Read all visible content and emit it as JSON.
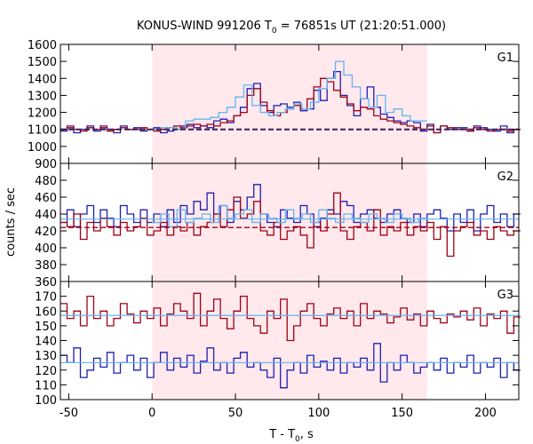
{
  "chart_data": {
    "type": "line",
    "title": "KONUS-WIND 991206 T",
    "title_sub": "0",
    "title_rest": " = 76851s UT (21:20:51.000)",
    "xlabel": "T - T",
    "xlabel_sub": "0",
    "xlabel_rest": ", s",
    "ylabel": "counts / sec",
    "xlim": [
      -55,
      220
    ],
    "x_ticks": [
      -50,
      0,
      50,
      100,
      150,
      200
    ],
    "shaded_interval": [
      0,
      165
    ],
    "colors": {
      "shade": "#ffe9ec",
      "red": "#a00014",
      "blue": "#1e1eb4",
      "cyan": "#64b4f0",
      "navy": "#3c1e5a"
    },
    "panels": [
      {
        "name": "G1",
        "ylim": [
          900,
          1600
        ],
        "y_ticks": [
          900,
          1000,
          1100,
          1200,
          1300,
          1400,
          1500,
          1600
        ],
        "background_level": 1100,
        "series": [
          {
            "color": "blue",
            "x_start": -55,
            "dx": 4,
            "values": [
              1090,
              1110,
              1080,
              1100,
              1120,
              1090,
              1110,
              1100,
              1080,
              1120,
              1100,
              1110,
              1090,
              1100,
              1110,
              1080,
              1090,
              1100,
              1120,
              1130,
              1110,
              1120,
              1110,
              1150,
              1160,
              1140,
              1180,
              1230,
              1340,
              1370,
              1240,
              1200,
              1240,
              1250,
              1230,
              1260,
              1210,
              1220,
              1330,
              1270,
              1400,
              1440,
              1300,
              1240,
              1180,
              1280,
              1350,
              1230,
              1190,
              1170,
              1150,
              1140,
              1150,
              1140,
              1090,
              1130,
              1080,
              1120,
              1100,
              1110,
              1110,
              1090,
              1120,
              1110,
              1100,
              1090,
              1120,
              1080,
              1100
            ]
          },
          {
            "color": "red",
            "x_start": -55,
            "dx": 4,
            "values": [
              1100,
              1120,
              1100,
              1090,
              1110,
              1100,
              1120,
              1090,
              1100,
              1110,
              1100,
              1100,
              1110,
              1100,
              1090,
              1100,
              1110,
              1120,
              1110,
              1120,
              1130,
              1120,
              1130,
              1120,
              1140,
              1150,
              1180,
              1200,
              1300,
              1340,
              1260,
              1210,
              1180,
              1200,
              1220,
              1240,
              1220,
              1280,
              1350,
              1400,
              1380,
              1330,
              1290,
              1250,
              1210,
              1230,
              1220,
              1180,
              1160,
              1150,
              1140,
              1130,
              1120,
              1110,
              1100,
              1120,
              1080,
              1120,
              1110,
              1100,
              1100,
              1090,
              1110,
              1100,
              1090,
              1100,
              1100,
              1090,
              1100
            ]
          },
          {
            "color": "cyan",
            "x_start": 0,
            "dx": 5,
            "values": [
              1100,
              1110,
              1110,
              1100,
              1150,
              1160,
              1160,
              1170,
              1200,
              1230,
              1290,
              1360,
              1240,
              1200,
              1180,
              1200,
              1220,
              1250,
              1220,
              1260,
              1340,
              1400,
              1500,
              1420,
              1350,
              1280,
              1230,
              1300,
              1200,
              1220,
              1180,
              1150,
              1150
            ]
          }
        ]
      },
      {
        "name": "G2",
        "ylim": [
          360,
          500
        ],
        "y_ticks": [
          360,
          380,
          400,
          420,
          440,
          460,
          480
        ],
        "background_level": 424,
        "blue_background_level": 434,
        "series": [
          {
            "color": "blue",
            "x_start": -55,
            "dx": 4,
            "values": [
              430,
              445,
              425,
              440,
              450,
              430,
              445,
              435,
              425,
              450,
              440,
              430,
              445,
              430,
              440,
              425,
              445,
              430,
              450,
              440,
              455,
              445,
              465,
              440,
              450,
              430,
              455,
              445,
              460,
              475,
              440,
              430,
              425,
              445,
              435,
              430,
              450,
              440,
              425,
              435,
              445,
              440,
              455,
              450,
              430,
              440,
              445,
              435,
              430,
              440,
              445,
              435,
              430,
              440,
              425,
              440,
              445,
              435,
              420,
              440,
              430,
              445,
              420,
              440,
              450,
              430,
              440,
              425,
              440
            ]
          },
          {
            "color": "red",
            "x_start": -55,
            "dx": 4,
            "values": [
              430,
              425,
              440,
              410,
              430,
              420,
              435,
              425,
              415,
              430,
              420,
              425,
              435,
              415,
              420,
              430,
              415,
              425,
              420,
              430,
              415,
              425,
              430,
              440,
              425,
              445,
              460,
              435,
              440,
              455,
              420,
              415,
              430,
              410,
              420,
              425,
              415,
              400,
              430,
              420,
              440,
              465,
              420,
              410,
              425,
              430,
              420,
              445,
              415,
              425,
              420,
              430,
              415,
              425,
              420,
              430,
              410,
              425,
              390,
              420,
              425,
              430,
              415,
              420,
              410,
              425,
              420,
              415,
              420
            ]
          },
          {
            "color": "cyan",
            "x_start": 0,
            "dx": 5,
            "values": [
              430,
              440,
              425,
              445,
              430,
              435,
              440,
              430,
              450,
              435,
              440,
              445,
              430,
              440,
              435,
              430,
              445,
              435,
              440,
              430,
              445,
              435,
              430,
              440,
              435,
              430,
              440,
              435,
              430,
              440,
              435,
              430,
              435
            ]
          }
        ]
      },
      {
        "name": "G3",
        "ylim": [
          100,
          180
        ],
        "y_ticks": [
          100,
          110,
          120,
          130,
          140,
          150,
          160,
          170
        ],
        "red_background_level": 157,
        "blue_background_level": 125,
        "series": [
          {
            "color": "red",
            "x_start": -55,
            "dx": 4,
            "values": [
              165,
              155,
              160,
              150,
              170,
              155,
              160,
              150,
              155,
              165,
              158,
              152,
              160,
              155,
              162,
              150,
              158,
              165,
              160,
              155,
              172,
              150,
              160,
              168,
              155,
              148,
              160,
              170,
              155,
              150,
              145,
              160,
              155,
              168,
              140,
              150,
              160,
              165,
              155,
              150,
              158,
              162,
              155,
              160,
              150,
              165,
              155,
              160,
              158,
              152,
              156,
              162,
              154,
              158,
              150,
              160,
              155,
              152,
              158,
              156,
              160,
              154,
              162,
              150,
              158,
              155,
              160,
              145,
              156
            ]
          },
          {
            "color": "blue",
            "x_start": -55,
            "dx": 4,
            "values": [
              130,
              125,
              135,
              115,
              120,
              128,
              122,
              132,
              118,
              125,
              130,
              120,
              128,
              115,
              125,
              132,
              120,
              128,
              122,
              130,
              118,
              126,
              135,
              120,
              125,
              118,
              128,
              132,
              122,
              125,
              120,
              115,
              128,
              108,
              120,
              125,
              118,
              130,
              122,
              126,
              120,
              128,
              118,
              125,
              122,
              128,
              120,
              138,
              112,
              125,
              120,
              130,
              125,
              118,
              122,
              125,
              120,
              128,
              118,
              125,
              122,
              130,
              118,
              125,
              122,
              128,
              115,
              125,
              120
            ]
          },
          {
            "color": "cyan",
            "x_start": 0,
            "dx": 5,
            "values": []
          }
        ]
      }
    ]
  }
}
